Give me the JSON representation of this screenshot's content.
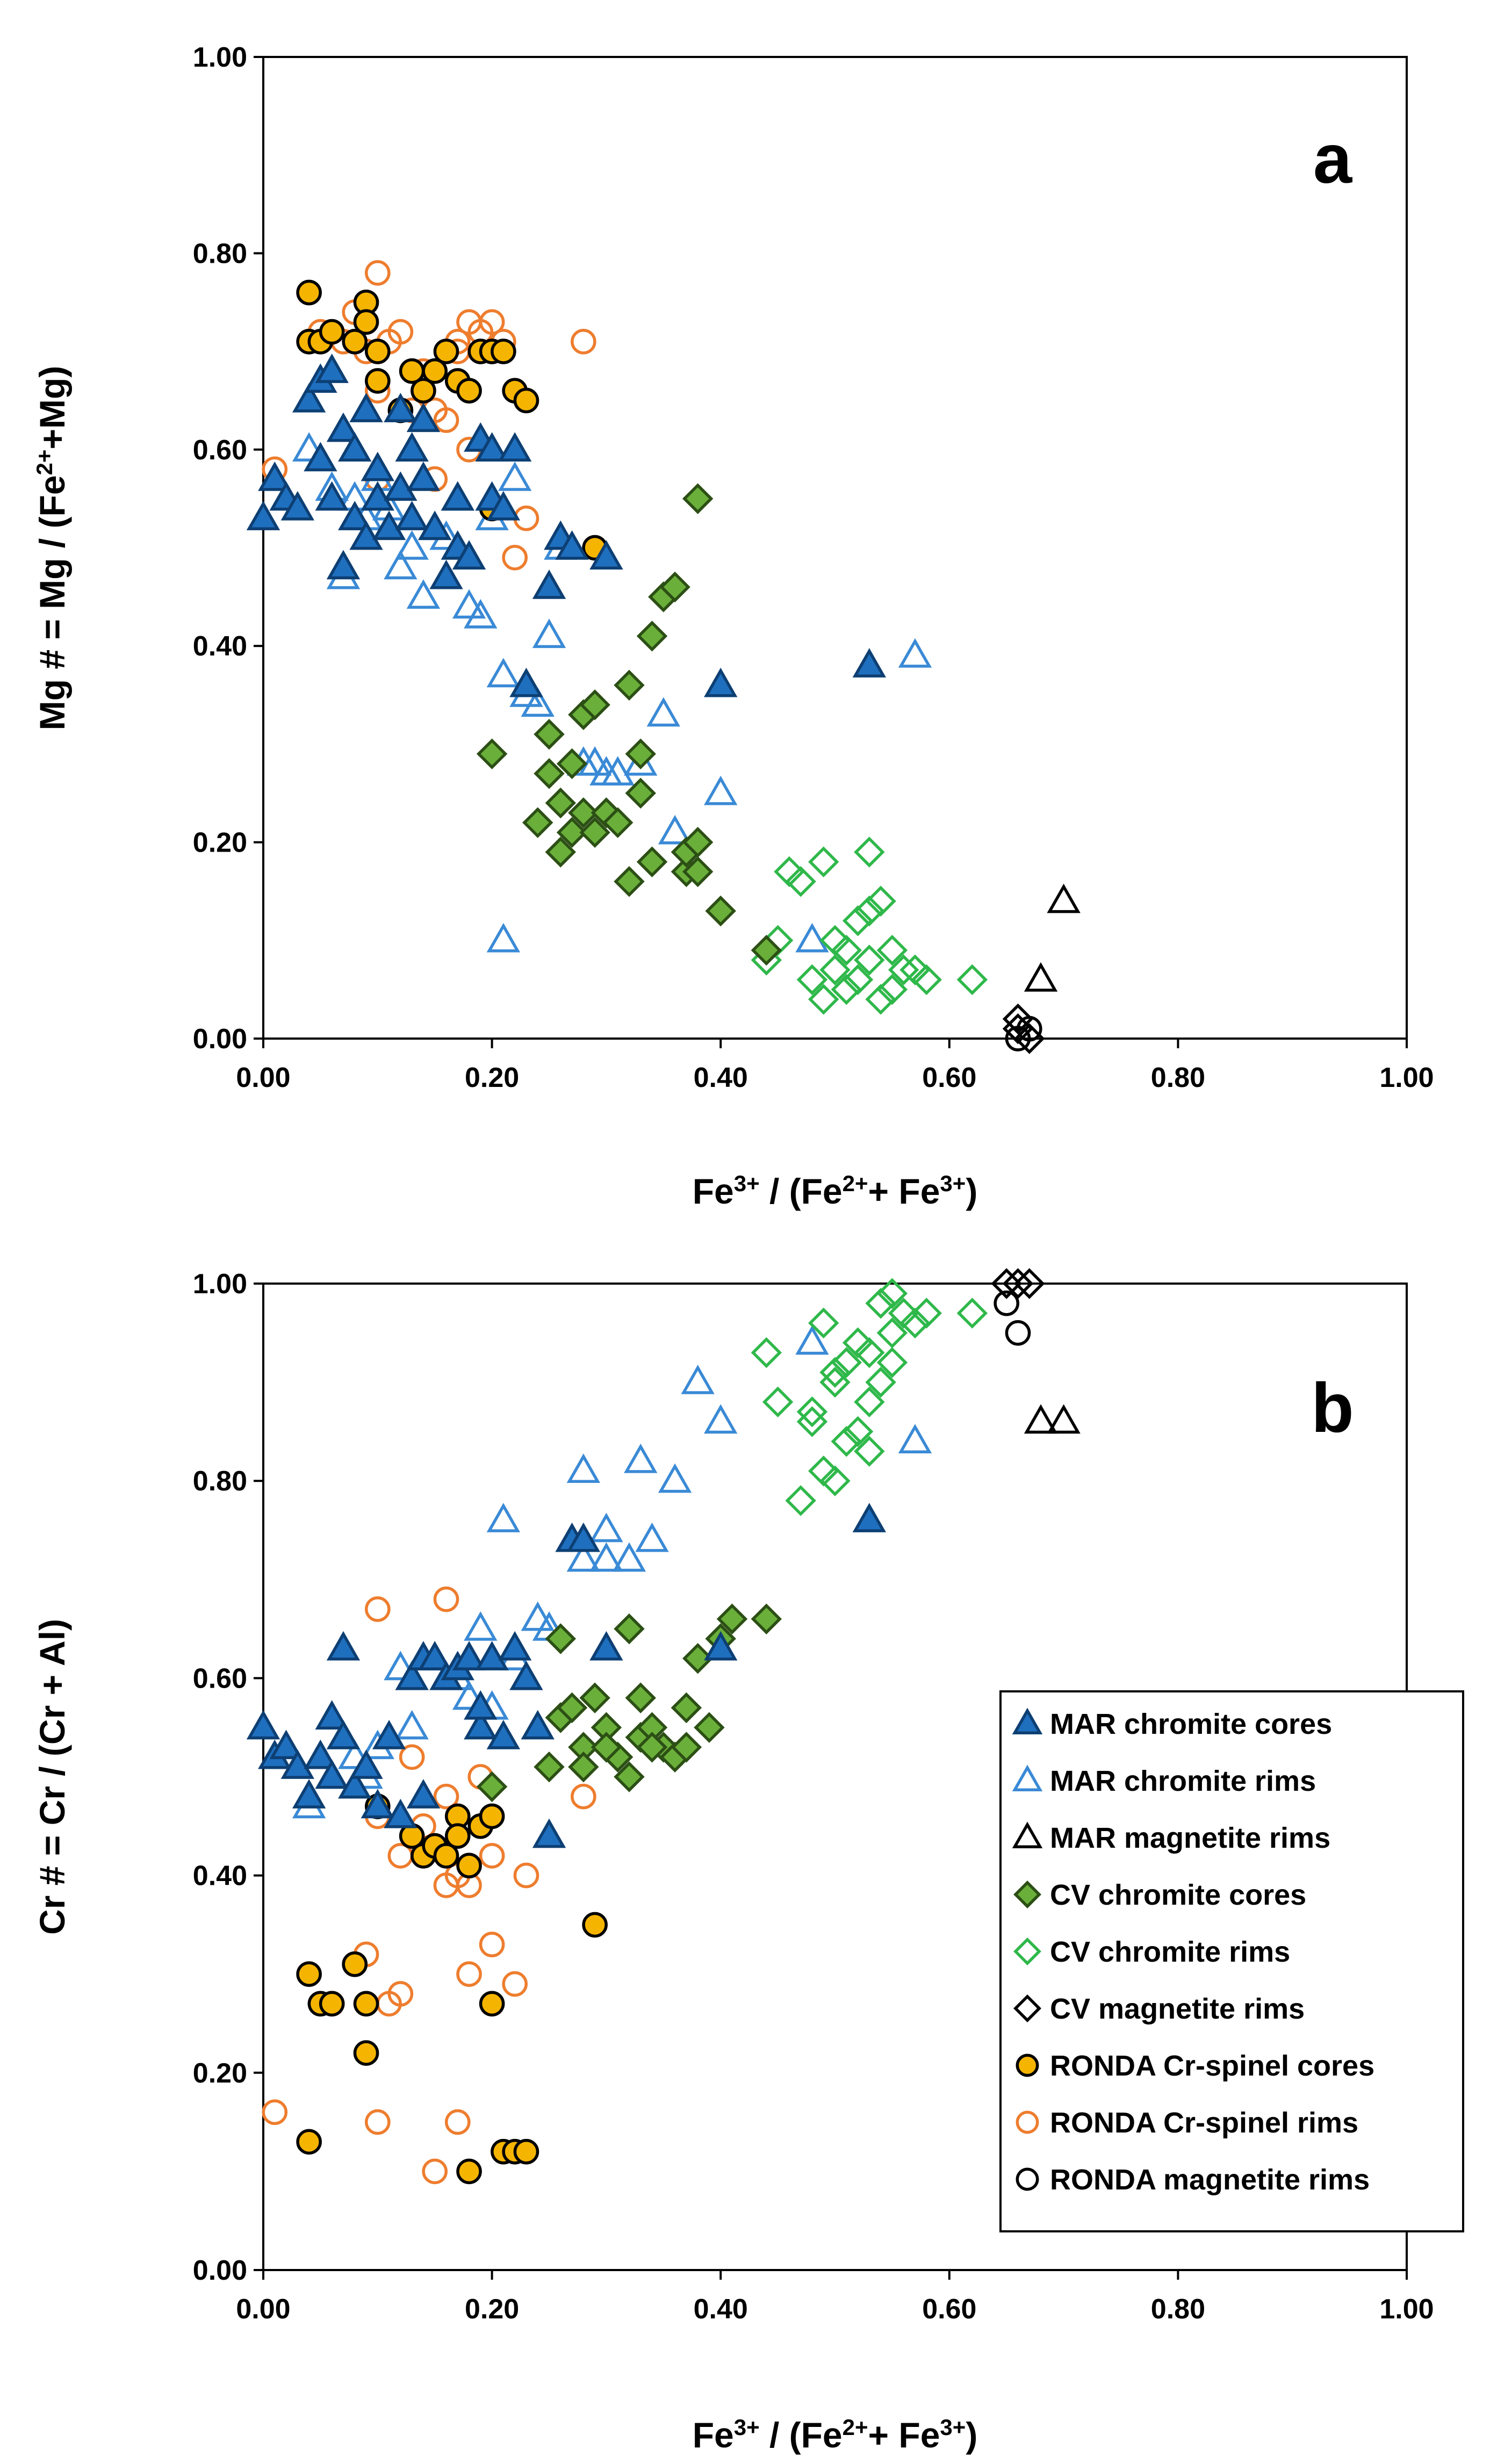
{
  "chart_data": [
    {
      "type": "scatter",
      "panel_label": "a",
      "xlabel_parts": [
        "Fe",
        "3+",
        " / (Fe",
        "2+",
        "+ Fe",
        "3+",
        ")"
      ],
      "ylabel_parts": [
        "Mg # = Mg / (Fe",
        "2+",
        "+Mg)"
      ],
      "xlim": [
        0,
        1
      ],
      "ylim": [
        0,
        1
      ],
      "xticks": [
        "0.00",
        "0.20",
        "0.40",
        "0.60",
        "0.80",
        "1.00"
      ],
      "yticks": [
        "0.00",
        "0.20",
        "0.40",
        "0.60",
        "0.80",
        "1.00"
      ],
      "series": [
        {
          "key": "mar_cores",
          "x": [
            0.0,
            0.01,
            0.02,
            0.03,
            0.04,
            0.05,
            0.05,
            0.06,
            0.06,
            0.07,
            0.07,
            0.08,
            0.08,
            0.09,
            0.09,
            0.1,
            0.1,
            0.11,
            0.12,
            0.12,
            0.13,
            0.13,
            0.14,
            0.14,
            0.15,
            0.16,
            0.17,
            0.17,
            0.18,
            0.19,
            0.2,
            0.2,
            0.21,
            0.22,
            0.23,
            0.25,
            0.26,
            0.27,
            0.3,
            0.4,
            0.53
          ],
          "y": [
            0.53,
            0.57,
            0.55,
            0.54,
            0.65,
            0.59,
            0.67,
            0.55,
            0.68,
            0.48,
            0.62,
            0.53,
            0.6,
            0.51,
            0.64,
            0.58,
            0.55,
            0.52,
            0.56,
            0.64,
            0.6,
            0.53,
            0.63,
            0.57,
            0.52,
            0.47,
            0.55,
            0.5,
            0.49,
            0.61,
            0.6,
            0.55,
            0.54,
            0.6,
            0.36,
            0.46,
            0.51,
            0.5,
            0.49,
            0.36,
            0.38
          ]
        },
        {
          "key": "mar_rims",
          "x": [
            0.04,
            0.06,
            0.07,
            0.08,
            0.09,
            0.1,
            0.11,
            0.12,
            0.13,
            0.14,
            0.15,
            0.16,
            0.17,
            0.18,
            0.19,
            0.2,
            0.21,
            0.22,
            0.23,
            0.24,
            0.25,
            0.26,
            0.28,
            0.3,
            0.31,
            0.33,
            0.35,
            0.36,
            0.4,
            0.48,
            0.57,
            0.21,
            0.29
          ],
          "y": [
            0.6,
            0.56,
            0.47,
            0.55,
            0.53,
            0.57,
            0.54,
            0.48,
            0.5,
            0.45,
            0.52,
            0.51,
            0.55,
            0.44,
            0.43,
            0.53,
            0.37,
            0.57,
            0.35,
            0.34,
            0.41,
            0.5,
            0.28,
            0.27,
            0.27,
            0.28,
            0.33,
            0.21,
            0.25,
            0.1,
            0.39,
            0.1,
            0.28
          ]
        },
        {
          "key": "mar_mag",
          "x": [
            0.68,
            0.7
          ],
          "y": [
            0.06,
            0.14
          ]
        },
        {
          "key": "cv_cores",
          "x": [
            0.2,
            0.24,
            0.25,
            0.25,
            0.26,
            0.26,
            0.27,
            0.27,
            0.28,
            0.28,
            0.29,
            0.29,
            0.3,
            0.31,
            0.32,
            0.32,
            0.33,
            0.33,
            0.34,
            0.34,
            0.35,
            0.36,
            0.37,
            0.37,
            0.38,
            0.38,
            0.4,
            0.44,
            0.38
          ],
          "y": [
            0.29,
            0.22,
            0.27,
            0.31,
            0.19,
            0.24,
            0.21,
            0.28,
            0.23,
            0.33,
            0.34,
            0.21,
            0.23,
            0.22,
            0.36,
            0.16,
            0.25,
            0.29,
            0.41,
            0.18,
            0.45,
            0.46,
            0.17,
            0.19,
            0.17,
            0.55,
            0.13,
            0.09,
            0.2
          ]
        },
        {
          "key": "cv_rims",
          "x": [
            0.44,
            0.45,
            0.46,
            0.47,
            0.48,
            0.49,
            0.49,
            0.5,
            0.5,
            0.51,
            0.51,
            0.52,
            0.52,
            0.53,
            0.53,
            0.53,
            0.54,
            0.54,
            0.55,
            0.55,
            0.56,
            0.57,
            0.58,
            0.62
          ],
          "y": [
            0.08,
            0.1,
            0.17,
            0.16,
            0.06,
            0.18,
            0.04,
            0.1,
            0.07,
            0.09,
            0.05,
            0.12,
            0.06,
            0.19,
            0.13,
            0.08,
            0.14,
            0.04,
            0.09,
            0.05,
            0.07,
            0.07,
            0.06,
            0.06
          ]
        },
        {
          "key": "cv_mag",
          "x": [
            0.66,
            0.66,
            0.67
          ],
          "y": [
            0.01,
            0.02,
            0.0
          ]
        },
        {
          "key": "ronda_cores",
          "x": [
            0.04,
            0.04,
            0.05,
            0.06,
            0.08,
            0.09,
            0.09,
            0.1,
            0.1,
            0.12,
            0.13,
            0.14,
            0.15,
            0.16,
            0.17,
            0.18,
            0.19,
            0.2,
            0.21,
            0.22,
            0.23,
            0.2,
            0.29
          ],
          "y": [
            0.76,
            0.71,
            0.71,
            0.72,
            0.71,
            0.75,
            0.73,
            0.7,
            0.67,
            0.64,
            0.68,
            0.66,
            0.68,
            0.7,
            0.67,
            0.66,
            0.7,
            0.7,
            0.7,
            0.66,
            0.65,
            0.54,
            0.5
          ]
        },
        {
          "key": "ronda_rims",
          "x": [
            0.01,
            0.05,
            0.07,
            0.08,
            0.09,
            0.1,
            0.1,
            0.11,
            0.12,
            0.13,
            0.14,
            0.15,
            0.16,
            0.17,
            0.18,
            0.18,
            0.19,
            0.2,
            0.21,
            0.22,
            0.23,
            0.28,
            0.15,
            0.1,
            0.17
          ],
          "y": [
            0.58,
            0.72,
            0.71,
            0.74,
            0.7,
            0.78,
            0.57,
            0.71,
            0.72,
            0.64,
            0.68,
            0.57,
            0.63,
            0.71,
            0.73,
            0.6,
            0.72,
            0.73,
            0.71,
            0.49,
            0.53,
            0.71,
            0.64,
            0.66,
            0.7
          ]
        },
        {
          "key": "ronda_mag",
          "x": [
            0.66,
            0.67
          ],
          "y": [
            0.0,
            0.01
          ]
        }
      ]
    },
    {
      "type": "scatter",
      "panel_label": "b",
      "xlabel_parts": [
        "Fe",
        "3+",
        " / (Fe",
        "2+",
        "+ Fe",
        "3+",
        ")"
      ],
      "ylabel_parts": [
        "Cr # = Cr / (Cr + Al)"
      ],
      "xlim": [
        0,
        1
      ],
      "ylim": [
        0,
        1
      ],
      "xticks": [
        "0.00",
        "0.20",
        "0.40",
        "0.60",
        "0.80",
        "1.00"
      ],
      "yticks": [
        "0.00",
        "0.20",
        "0.40",
        "0.60",
        "0.80",
        "1.00"
      ],
      "series": [
        {
          "key": "mar_cores",
          "x": [
            0.0,
            0.01,
            0.02,
            0.03,
            0.04,
            0.05,
            0.06,
            0.06,
            0.07,
            0.07,
            0.08,
            0.09,
            0.1,
            0.11,
            0.12,
            0.13,
            0.14,
            0.14,
            0.15,
            0.16,
            0.17,
            0.18,
            0.19,
            0.19,
            0.2,
            0.21,
            0.22,
            0.23,
            0.24,
            0.25,
            0.27,
            0.28,
            0.3,
            0.4,
            0.53
          ],
          "y": [
            0.55,
            0.52,
            0.53,
            0.51,
            0.48,
            0.52,
            0.56,
            0.5,
            0.63,
            0.54,
            0.49,
            0.51,
            0.47,
            0.54,
            0.46,
            0.6,
            0.62,
            0.48,
            0.62,
            0.6,
            0.61,
            0.62,
            0.55,
            0.57,
            0.62,
            0.54,
            0.63,
            0.6,
            0.55,
            0.44,
            0.74,
            0.74,
            0.63,
            0.63,
            0.76
          ]
        },
        {
          "key": "mar_rims",
          "x": [
            0.04,
            0.06,
            0.08,
            0.09,
            0.1,
            0.12,
            0.13,
            0.15,
            0.17,
            0.18,
            0.19,
            0.2,
            0.21,
            0.22,
            0.24,
            0.25,
            0.28,
            0.28,
            0.3,
            0.3,
            0.32,
            0.33,
            0.34,
            0.36,
            0.38,
            0.4,
            0.48,
            0.57
          ],
          "y": [
            0.47,
            0.5,
            0.52,
            0.5,
            0.53,
            0.61,
            0.55,
            0.62,
            0.6,
            0.58,
            0.65,
            0.57,
            0.76,
            0.62,
            0.66,
            0.65,
            0.81,
            0.72,
            0.75,
            0.72,
            0.72,
            0.82,
            0.74,
            0.8,
            0.9,
            0.86,
            0.94,
            0.84
          ]
        },
        {
          "key": "mar_mag",
          "x": [
            0.68,
            0.7
          ],
          "y": [
            0.86,
            0.86
          ]
        },
        {
          "key": "cv_cores",
          "x": [
            0.2,
            0.25,
            0.26,
            0.27,
            0.28,
            0.28,
            0.29,
            0.3,
            0.31,
            0.32,
            0.32,
            0.33,
            0.33,
            0.34,
            0.35,
            0.36,
            0.37,
            0.37,
            0.38,
            0.39,
            0.4,
            0.41,
            0.44,
            0.26,
            0.3,
            0.34
          ],
          "y": [
            0.49,
            0.51,
            0.56,
            0.57,
            0.53,
            0.51,
            0.58,
            0.55,
            0.52,
            0.65,
            0.5,
            0.58,
            0.54,
            0.55,
            0.53,
            0.52,
            0.57,
            0.53,
            0.62,
            0.55,
            0.64,
            0.66,
            0.66,
            0.64,
            0.53,
            0.53
          ]
        },
        {
          "key": "cv_rims",
          "x": [
            0.44,
            0.45,
            0.47,
            0.48,
            0.49,
            0.49,
            0.5,
            0.5,
            0.51,
            0.51,
            0.52,
            0.52,
            0.53,
            0.53,
            0.54,
            0.54,
            0.55,
            0.55,
            0.56,
            0.57,
            0.58,
            0.62,
            0.48,
            0.5,
            0.53,
            0.55
          ],
          "y": [
            0.93,
            0.88,
            0.78,
            0.87,
            0.81,
            0.96,
            0.91,
            0.8,
            0.92,
            0.84,
            0.94,
            0.85,
            0.93,
            0.83,
            0.98,
            0.9,
            0.99,
            0.92,
            0.97,
            0.96,
            0.97,
            0.97,
            0.86,
            0.9,
            0.88,
            0.95
          ]
        },
        {
          "key": "cv_mag",
          "x": [
            0.65,
            0.66,
            0.67
          ],
          "y": [
            1.0,
            1.0,
            1.0
          ]
        },
        {
          "key": "ronda_cores",
          "x": [
            0.04,
            0.04,
            0.05,
            0.06,
            0.08,
            0.09,
            0.09,
            0.1,
            0.13,
            0.14,
            0.15,
            0.16,
            0.17,
            0.17,
            0.18,
            0.18,
            0.19,
            0.2,
            0.21,
            0.22,
            0.23,
            0.29,
            0.2
          ],
          "y": [
            0.3,
            0.13,
            0.27,
            0.27,
            0.31,
            0.27,
            0.22,
            0.47,
            0.44,
            0.42,
            0.43,
            0.42,
            0.46,
            0.44,
            0.41,
            0.1,
            0.45,
            0.46,
            0.12,
            0.12,
            0.12,
            0.35,
            0.27
          ]
        },
        {
          "key": "ronda_rims",
          "x": [
            0.01,
            0.06,
            0.09,
            0.1,
            0.1,
            0.11,
            0.12,
            0.12,
            0.13,
            0.14,
            0.15,
            0.16,
            0.16,
            0.17,
            0.17,
            0.18,
            0.18,
            0.19,
            0.2,
            0.2,
            0.22,
            0.23,
            0.28,
            0.1,
            0.16
          ],
          "y": [
            0.16,
            0.27,
            0.32,
            0.67,
            0.15,
            0.27,
            0.42,
            0.28,
            0.52,
            0.45,
            0.1,
            0.68,
            0.39,
            0.4,
            0.15,
            0.39,
            0.3,
            0.5,
            0.42,
            0.33,
            0.29,
            0.4,
            0.48,
            0.46,
            0.48
          ]
        },
        {
          "key": "ronda_mag",
          "x": [
            0.08,
            0.65,
            0.66
          ],
          "y": [
            0.31,
            0.98,
            0.95
          ]
        }
      ]
    }
  ],
  "legend": {
    "position": "bottom-right of panel b",
    "items": [
      {
        "key": "mar_cores",
        "label": "MAR chromite cores",
        "marker": "triangle",
        "fill": "#1f6fbf",
        "stroke": "#0d3f73",
        "filled": true
      },
      {
        "key": "mar_rims",
        "label": "MAR chromite rims",
        "marker": "triangle",
        "fill": "none",
        "stroke": "#3a8ad6",
        "filled": false
      },
      {
        "key": "mar_mag",
        "label": "MAR magnetite rims",
        "marker": "triangle",
        "fill": "none",
        "stroke": "#000000",
        "filled": false
      },
      {
        "key": "cv_cores",
        "label": "CV chromite cores",
        "marker": "diamond",
        "fill": "#6aaf3a",
        "stroke": "#2c4f15",
        "filled": true
      },
      {
        "key": "cv_rims",
        "label": "CV chromite rims",
        "marker": "diamond",
        "fill": "none",
        "stroke": "#2fb84a",
        "filled": false
      },
      {
        "key": "cv_mag",
        "label": "CV magnetite rims",
        "marker": "diamond",
        "fill": "none",
        "stroke": "#000000",
        "filled": false
      },
      {
        "key": "ronda_cores",
        "label": "RONDA Cr-spinel cores",
        "marker": "circle",
        "fill": "#f5b400",
        "stroke": "#000000",
        "filled": true
      },
      {
        "key": "ronda_rims",
        "label": "RONDA Cr-spinel rims",
        "marker": "circle",
        "fill": "none",
        "stroke": "#ee7d2e",
        "filled": false
      },
      {
        "key": "ronda_mag",
        "label": "RONDA magnetite rims",
        "marker": "circle",
        "fill": "none",
        "stroke": "#000000",
        "filled": false
      }
    ]
  }
}
